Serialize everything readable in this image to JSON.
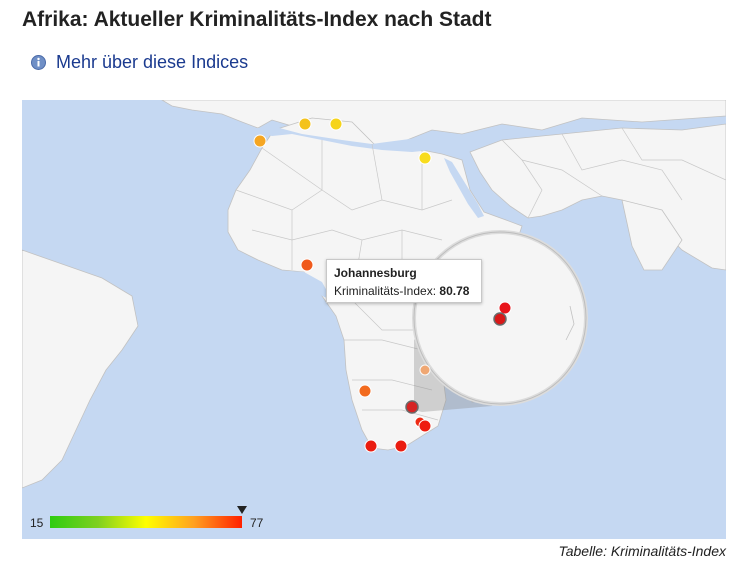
{
  "title": "Afrika: Aktueller Kriminalitäts-Index nach Stadt",
  "more_link": {
    "label": "Mehr über diese Indices",
    "icon": "info-icon"
  },
  "map": {
    "region": "Afrika",
    "colors": {
      "water": "#c5d8f2",
      "land": "#f5f5f5",
      "border": "#c2c2c2",
      "low": "#2ecc10",
      "high": "#ff2000"
    },
    "legend": {
      "min": "15",
      "max": "77",
      "selected_value": 80.78
    },
    "tooltip": {
      "city": "Johannesburg",
      "label": "Kriminalitäts-Index:",
      "value": "80.78"
    },
    "magnifier": true
  },
  "caption": "Tabelle: Kriminalitäts-Index"
}
